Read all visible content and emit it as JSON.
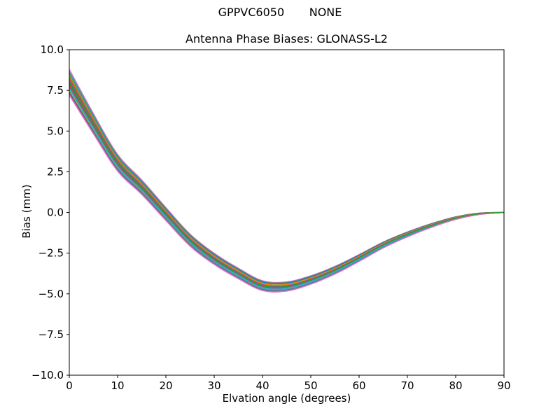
{
  "figure": {
    "suptitle": "GPPVC6050       NONE",
    "title": "Antenna Phase Biases: GLONASS-L2"
  },
  "chart_data": {
    "type": "line",
    "suptitle": "GPPVC6050       NONE",
    "title": "Antenna Phase Biases: GLONASS-L2",
    "xlabel": "Elvation angle (degrees)",
    "ylabel": "Bias (mm)",
    "xlim": [
      0,
      90
    ],
    "ylim": [
      -10,
      10
    ],
    "grid": false,
    "legend": "none",
    "x_ticks": [
      0,
      10,
      20,
      30,
      40,
      50,
      60,
      70,
      80,
      90
    ],
    "x_tick_labels": [
      "0",
      "10",
      "20",
      "30",
      "40",
      "50",
      "60",
      "70",
      "80",
      "90"
    ],
    "y_ticks": [
      -10,
      -7.5,
      -5,
      -2.5,
      0,
      2.5,
      5,
      7.5,
      10
    ],
    "y_tick_labels": [
      "−10.0",
      "−7.5",
      "−5.0",
      "−2.5",
      "0.0",
      "2.5",
      "5.0",
      "7.5",
      "10.0"
    ],
    "x": [
      0,
      5,
      10,
      15,
      20,
      25,
      30,
      35,
      40,
      45,
      50,
      55,
      60,
      65,
      70,
      75,
      80,
      85,
      90
    ],
    "base_values": [
      8.0,
      5.45,
      3.05,
      1.55,
      -0.1,
      -1.7,
      -2.85,
      -3.75,
      -4.5,
      -4.55,
      -4.15,
      -3.55,
      -2.8,
      -2.0,
      -1.35,
      -0.8,
      -0.35,
      -0.08,
      0.0
    ],
    "band_min_at_0": 7.2,
    "band_max_at_0": 8.8,
    "minimum_value": -4.8,
    "minimum_angle": 42,
    "end_value_at_90": 0.0,
    "series": [
      {
        "color": "#e377c2",
        "offset": 0.8,
        "decay": 1.0
      },
      {
        "color": "#7f7f7f",
        "offset": 0.68,
        "decay": 0.95
      },
      {
        "color": "#17becf",
        "offset": 0.6,
        "decay": 1.05
      },
      {
        "color": "#1f77b4",
        "offset": 0.52,
        "decay": 0.9
      },
      {
        "color": "#bcbd22",
        "offset": 0.45,
        "decay": 1.1
      },
      {
        "color": "#2ca02c",
        "offset": 0.38,
        "decay": 1.0
      },
      {
        "color": "#ff7f0e",
        "offset": 0.3,
        "decay": 0.85
      },
      {
        "color": "#d62728",
        "offset": 0.22,
        "decay": 1.15
      },
      {
        "color": "#9467bd",
        "offset": 0.15,
        "decay": 0.9
      },
      {
        "color": "#8c564b",
        "offset": 0.08,
        "decay": 1.05
      },
      {
        "color": "#1f77b4",
        "offset": 0.02,
        "decay": 1.0
      },
      {
        "color": "#ff7f0e",
        "offset": -0.05,
        "decay": 1.2
      },
      {
        "color": "#2ca02c",
        "offset": -0.12,
        "decay": 0.8
      },
      {
        "color": "#d62728",
        "offset": -0.18,
        "decay": 1.0
      },
      {
        "color": "#9467bd",
        "offset": -0.25,
        "decay": 1.1
      },
      {
        "color": "#8c564b",
        "offset": -0.32,
        "decay": 0.95
      },
      {
        "color": "#7f7f7f",
        "offset": -0.45,
        "decay": 1.05
      },
      {
        "color": "#bcbd22",
        "offset": -0.52,
        "decay": 0.9
      },
      {
        "color": "#17becf",
        "offset": -0.38,
        "decay": 1.15
      },
      {
        "color": "#1f77b4",
        "offset": -0.6,
        "decay": 1.0
      },
      {
        "color": "#d62728",
        "offset": -0.68,
        "decay": 0.95
      },
      {
        "color": "#9467bd",
        "offset": -0.73,
        "decay": 1.05
      },
      {
        "color": "#e377c2",
        "offset": -0.8,
        "decay": 1.0
      },
      {
        "color": "#2ca02c",
        "offset": -0.02,
        "decay": 1.0
      }
    ]
  }
}
